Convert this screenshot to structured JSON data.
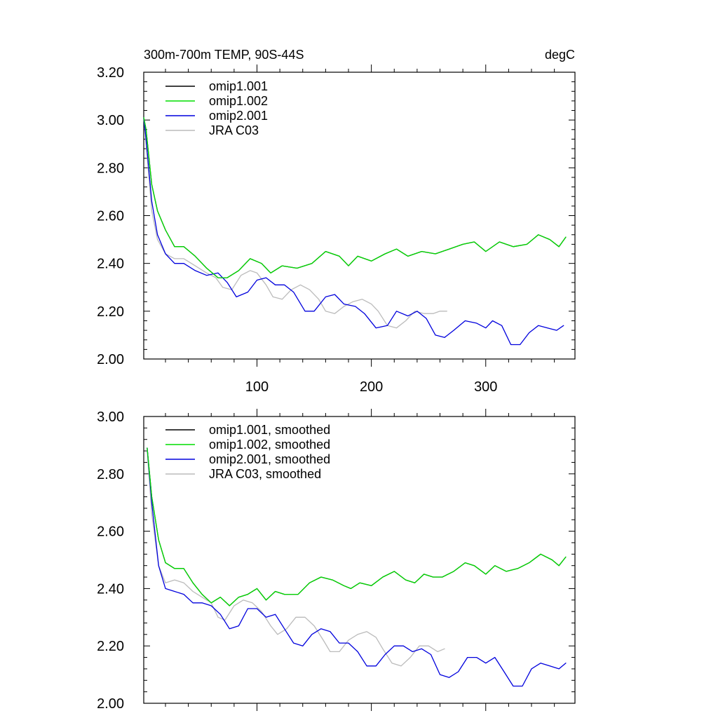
{
  "colors": {
    "omip1_001": "#000000",
    "omip1_002": "#00dd00",
    "omip2_001": "#0000dd",
    "jra_c03": "#bbbbbb"
  },
  "chart_data": [
    {
      "type": "line",
      "title": "300m-700m TEMP, 90S-44S",
      "units": "degC",
      "xlim": [
        1,
        378
      ],
      "ylim": [
        2.0,
        3.2
      ],
      "xticks": [
        100,
        200,
        300
      ],
      "xtick_labels": [
        "100",
        "200",
        "300"
      ],
      "yticks": [
        2.0,
        2.2,
        2.4,
        2.6,
        2.8,
        3.0,
        3.2
      ],
      "ytick_labels": [
        "2.00",
        "2.20",
        "2.40",
        "2.60",
        "2.80",
        "3.00",
        "3.20"
      ],
      "legend_position": "top-left",
      "series": [
        {
          "name": "omip1.001",
          "color_key": "omip1_001",
          "x": [
            1,
            3,
            8,
            13,
            20,
            28,
            36,
            46,
            56,
            66,
            74,
            84,
            94,
            104,
            112,
            122,
            135,
            148,
            160,
            172,
            180,
            188,
            200,
            212,
            222,
            232,
            244,
            256,
            268,
            280,
            290,
            300,
            312,
            324,
            336,
            346,
            356,
            364,
            370
          ],
          "y": [
            3.01,
            2.96,
            2.73,
            2.62,
            2.54,
            2.47,
            2.47,
            2.43,
            2.38,
            2.34,
            2.34,
            2.37,
            2.42,
            2.4,
            2.36,
            2.39,
            2.38,
            2.4,
            2.45,
            2.43,
            2.39,
            2.43,
            2.41,
            2.44,
            2.46,
            2.43,
            2.45,
            2.44,
            2.46,
            2.48,
            2.49,
            2.45,
            2.49,
            2.47,
            2.48,
            2.52,
            2.5,
            2.47,
            2.51
          ]
        },
        {
          "name": "omip1.002",
          "color_key": "omip1_002",
          "x": [
            1,
            3,
            8,
            13,
            20,
            28,
            36,
            46,
            56,
            66,
            74,
            84,
            94,
            104,
            112,
            122,
            135,
            148,
            160,
            172,
            180,
            188,
            200,
            212,
            222,
            232,
            244,
            256,
            268,
            280,
            290,
            300,
            312,
            324,
            336,
            346,
            356,
            364,
            370
          ],
          "y": [
            3.01,
            2.96,
            2.73,
            2.62,
            2.54,
            2.47,
            2.47,
            2.43,
            2.38,
            2.34,
            2.34,
            2.37,
            2.42,
            2.4,
            2.36,
            2.39,
            2.38,
            2.4,
            2.45,
            2.43,
            2.39,
            2.43,
            2.41,
            2.44,
            2.46,
            2.43,
            2.45,
            2.44,
            2.46,
            2.48,
            2.49,
            2.45,
            2.49,
            2.47,
            2.48,
            2.52,
            2.5,
            2.47,
            2.51
          ]
        },
        {
          "name": "omip2.001",
          "color_key": "omip2_001",
          "x": [
            1,
            3,
            8,
            13,
            20,
            28,
            36,
            46,
            56,
            66,
            74,
            82,
            92,
            100,
            108,
            116,
            124,
            132,
            142,
            150,
            160,
            168,
            176,
            186,
            194,
            204,
            214,
            222,
            232,
            240,
            248,
            256,
            264,
            272,
            282,
            292,
            300,
            306,
            314,
            322,
            330,
            338,
            346,
            354,
            362,
            368
          ],
          "y": [
            3.01,
            2.92,
            2.66,
            2.52,
            2.44,
            2.4,
            2.4,
            2.37,
            2.35,
            2.36,
            2.32,
            2.26,
            2.28,
            2.33,
            2.34,
            2.31,
            2.31,
            2.28,
            2.2,
            2.2,
            2.26,
            2.27,
            2.23,
            2.22,
            2.19,
            2.13,
            2.14,
            2.2,
            2.18,
            2.2,
            2.17,
            2.1,
            2.09,
            2.12,
            2.16,
            2.15,
            2.13,
            2.16,
            2.14,
            2.06,
            2.06,
            2.11,
            2.14,
            2.13,
            2.12,
            2.14
          ]
        },
        {
          "name": "JRA C03",
          "color_key": "jra_c03",
          "x": [
            1,
            3,
            8,
            13,
            20,
            28,
            36,
            46,
            56,
            64,
            70,
            78,
            86,
            94,
            100,
            108,
            114,
            122,
            130,
            138,
            146,
            154,
            160,
            168,
            176,
            184,
            192,
            200,
            206,
            214,
            222,
            230,
            238,
            246,
            254,
            260,
            266
          ],
          "y": [
            3.01,
            2.9,
            2.62,
            2.5,
            2.44,
            2.42,
            2.42,
            2.39,
            2.36,
            2.34,
            2.3,
            2.29,
            2.35,
            2.37,
            2.36,
            2.31,
            2.26,
            2.25,
            2.29,
            2.31,
            2.29,
            2.25,
            2.2,
            2.19,
            2.22,
            2.24,
            2.25,
            2.23,
            2.2,
            2.14,
            2.13,
            2.16,
            2.2,
            2.19,
            2.19,
            2.2,
            2.2
          ]
        }
      ]
    },
    {
      "type": "line",
      "title": "",
      "units": "",
      "xlim": [
        1,
        378
      ],
      "ylim": [
        2.0,
        3.0
      ],
      "xticks": [
        100,
        200,
        300
      ],
      "xtick_labels": [
        "",
        "",
        ""
      ],
      "yticks": [
        2.0,
        2.2,
        2.4,
        2.6,
        2.8,
        3.0
      ],
      "ytick_labels": [
        "2.00",
        "2.20",
        "2.40",
        "2.60",
        "2.80",
        "3.00"
      ],
      "legend_position": "top-left",
      "series": [
        {
          "name": "omip1.001, smoothed",
          "color_key": "omip1_001",
          "x": [
            4,
            8,
            14,
            20,
            28,
            36,
            44,
            52,
            60,
            68,
            76,
            84,
            92,
            100,
            108,
            116,
            124,
            136,
            146,
            156,
            166,
            176,
            182,
            190,
            200,
            210,
            220,
            230,
            238,
            246,
            254,
            262,
            272,
            282,
            290,
            300,
            308,
            318,
            328,
            338,
            348,
            358,
            364,
            370
          ],
          "y": [
            2.89,
            2.72,
            2.57,
            2.49,
            2.47,
            2.47,
            2.42,
            2.38,
            2.35,
            2.37,
            2.34,
            2.37,
            2.38,
            2.4,
            2.36,
            2.39,
            2.38,
            2.38,
            2.42,
            2.44,
            2.43,
            2.41,
            2.4,
            2.42,
            2.41,
            2.44,
            2.46,
            2.43,
            2.42,
            2.45,
            2.44,
            2.44,
            2.46,
            2.49,
            2.48,
            2.45,
            2.48,
            2.46,
            2.47,
            2.49,
            2.52,
            2.5,
            2.48,
            2.51
          ]
        },
        {
          "name": "omip1.002, smoothed",
          "color_key": "omip1_002",
          "x": [
            4,
            8,
            14,
            20,
            28,
            36,
            44,
            52,
            60,
            68,
            76,
            84,
            92,
            100,
            108,
            116,
            124,
            136,
            146,
            156,
            166,
            176,
            182,
            190,
            200,
            210,
            220,
            230,
            238,
            246,
            254,
            262,
            272,
            282,
            290,
            300,
            308,
            318,
            328,
            338,
            348,
            358,
            364,
            370
          ],
          "y": [
            2.89,
            2.72,
            2.57,
            2.49,
            2.47,
            2.47,
            2.42,
            2.38,
            2.35,
            2.37,
            2.34,
            2.37,
            2.38,
            2.4,
            2.36,
            2.39,
            2.38,
            2.38,
            2.42,
            2.44,
            2.43,
            2.41,
            2.4,
            2.42,
            2.41,
            2.44,
            2.46,
            2.43,
            2.42,
            2.45,
            2.44,
            2.44,
            2.46,
            2.49,
            2.48,
            2.45,
            2.48,
            2.46,
            2.47,
            2.49,
            2.52,
            2.5,
            2.48,
            2.51
          ]
        },
        {
          "name": "omip2.001, smoothed",
          "color_key": "omip2_001",
          "x": [
            4,
            8,
            14,
            20,
            28,
            36,
            44,
            52,
            60,
            68,
            76,
            84,
            92,
            100,
            108,
            116,
            124,
            132,
            140,
            148,
            156,
            164,
            172,
            180,
            188,
            196,
            204,
            212,
            220,
            228,
            236,
            244,
            252,
            260,
            268,
            276,
            284,
            292,
            300,
            308,
            316,
            324,
            332,
            340,
            348,
            356,
            364,
            370
          ],
          "y": [
            2.89,
            2.7,
            2.48,
            2.4,
            2.39,
            2.38,
            2.35,
            2.35,
            2.34,
            2.31,
            2.26,
            2.27,
            2.33,
            2.33,
            2.3,
            2.31,
            2.26,
            2.21,
            2.2,
            2.24,
            2.26,
            2.25,
            2.21,
            2.21,
            2.18,
            2.13,
            2.13,
            2.17,
            2.2,
            2.2,
            2.18,
            2.19,
            2.17,
            2.1,
            2.09,
            2.11,
            2.16,
            2.16,
            2.14,
            2.16,
            2.11,
            2.06,
            2.06,
            2.12,
            2.14,
            2.13,
            2.12,
            2.14
          ]
        },
        {
          "name": "JRA C03, smoothed",
          "color_key": "jra_c03",
          "x": [
            4,
            8,
            14,
            20,
            28,
            36,
            44,
            52,
            60,
            66,
            72,
            80,
            88,
            96,
            104,
            112,
            118,
            126,
            134,
            142,
            150,
            158,
            164,
            172,
            180,
            188,
            196,
            204,
            210,
            218,
            226,
            234,
            242,
            250,
            258,
            264
          ],
          "y": [
            2.88,
            2.66,
            2.48,
            2.42,
            2.43,
            2.42,
            2.39,
            2.37,
            2.35,
            2.3,
            2.29,
            2.34,
            2.36,
            2.35,
            2.32,
            2.27,
            2.24,
            2.26,
            2.3,
            2.3,
            2.27,
            2.22,
            2.18,
            2.18,
            2.22,
            2.24,
            2.25,
            2.23,
            2.19,
            2.14,
            2.13,
            2.16,
            2.2,
            2.2,
            2.18,
            2.19
          ]
        }
      ]
    }
  ]
}
